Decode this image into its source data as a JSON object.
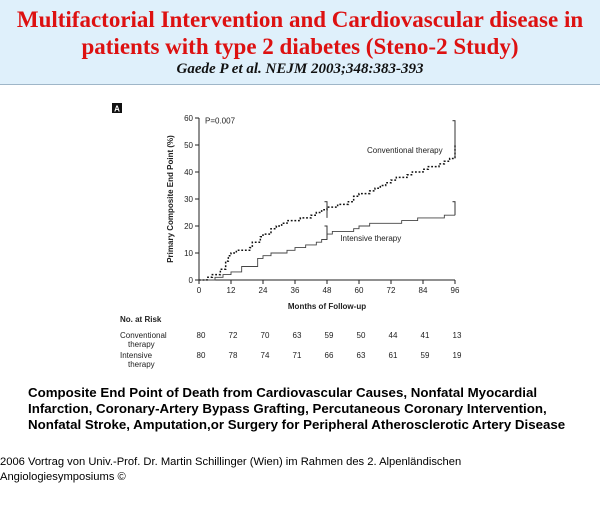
{
  "header": {
    "title": "Multifactorial Intervention and Cardiovascular disease in\npatients with type 2 diabetes (Steno-2 Study)",
    "citation": "Gaede P et al. NEJM 2003;348:383-393"
  },
  "chart_data": {
    "type": "line",
    "panel_label": "A",
    "p_value": "P=0.007",
    "xlabel": "Months of Follow-up",
    "ylabel": "Primary Composite End Point (%)",
    "xlim": [
      0,
      96
    ],
    "ylim": [
      0,
      60
    ],
    "xticks": [
      "0",
      "12",
      "24",
      "36",
      "48",
      "60",
      "72",
      "84",
      "96"
    ],
    "yticks": [
      "0",
      "10",
      "20",
      "30",
      "40",
      "50",
      "60"
    ],
    "series": [
      {
        "name": "Conventional therapy",
        "style": "dotted",
        "x": [
          0,
          3,
          5,
          8,
          10,
          11,
          12,
          14,
          17,
          19,
          20,
          23,
          24,
          27,
          29,
          31,
          33,
          36,
          38,
          40,
          42,
          44,
          46,
          48,
          50,
          52,
          54,
          56,
          58,
          60,
          62,
          64,
          66,
          68,
          70,
          72,
          74,
          76,
          78,
          80,
          82,
          84,
          86,
          88,
          90,
          92,
          94,
          96
        ],
        "y": [
          0,
          1,
          2,
          4,
          7,
          9,
          10,
          11,
          11,
          12,
          14,
          16,
          17,
          19,
          20,
          21,
          22,
          22,
          23,
          23,
          24,
          25,
          26,
          27,
          27,
          28,
          28,
          29,
          31,
          32,
          32,
          33,
          34,
          35,
          36,
          37,
          38,
          38,
          39,
          40,
          40,
          41,
          42,
          42,
          43,
          44,
          45,
          50
        ]
      },
      {
        "name": "Intensive therapy",
        "style": "solid",
        "x": [
          0,
          3,
          6,
          9,
          12,
          14,
          16,
          19,
          22,
          24,
          27,
          30,
          33,
          36,
          40,
          44,
          46,
          48,
          50,
          54,
          58,
          60,
          64,
          70,
          76,
          82,
          88,
          92,
          94,
          96
        ],
        "y": [
          0,
          0,
          1,
          2,
          3,
          3,
          5,
          5,
          8,
          9,
          10,
          10,
          11,
          12,
          13,
          14,
          15,
          17,
          18,
          18,
          19,
          20,
          21,
          21,
          22,
          23,
          23,
          24,
          24,
          24
        ]
      }
    ],
    "end_bars": [
      {
        "series": "Conventional therapy",
        "x": 48,
        "low": 23,
        "high": 29
      },
      {
        "series": "Conventional therapy",
        "x": 96,
        "low": 45,
        "high": 59
      },
      {
        "series": "Intensive therapy",
        "x": 48,
        "low": 15,
        "high": 20
      },
      {
        "series": "Intensive therapy",
        "x": 96,
        "low": 24,
        "high": 29
      }
    ],
    "risk_table": {
      "header": "No. at Risk",
      "rows": [
        {
          "label": "Conventional\ntherapy",
          "values": [
            "80",
            "72",
            "70",
            "63",
            "59",
            "50",
            "44",
            "41",
            "13"
          ]
        },
        {
          "label": "Intensive\ntherapy",
          "values": [
            "80",
            "78",
            "74",
            "71",
            "66",
            "63",
            "61",
            "59",
            "19"
          ]
        }
      ]
    }
  },
  "caption": "Composite End Point of Death from Cardiovascular Causes, Nonfatal Myocardial\nInfarction, Coronary-Artery Bypass Grafting, Percutaneous Coronary Intervention,\nNonfatal Stroke, Amputation,or Surgery for Peripheral Atherosclerotic Artery Disease",
  "footer": " 2006 Vortrag von Univ.-Prof. Dr. Martin Schillinger (Wien) im Rahmen des 2. Alpenländischen\nAngiologiesymposiums ©"
}
